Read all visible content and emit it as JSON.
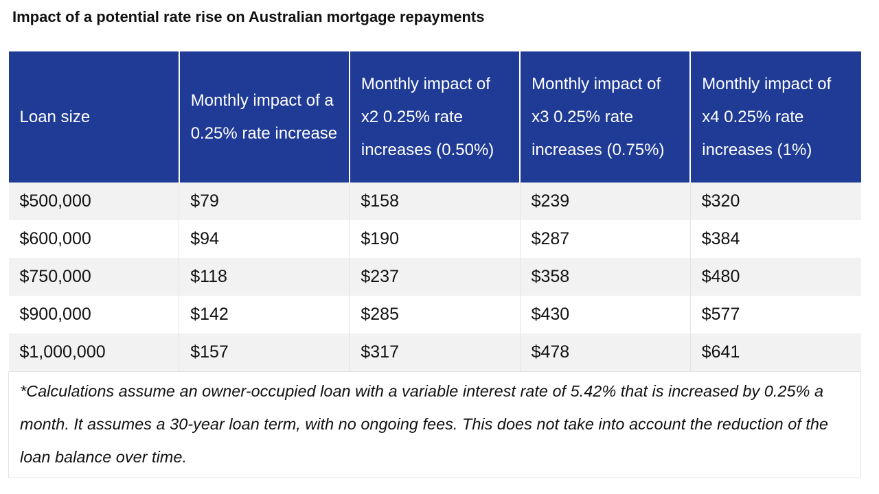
{
  "title": "Impact of a potential rate rise on Australian mortgage repayments",
  "table": {
    "header": [
      "Loan size",
      "Monthly impact of a 0.25% rate increase",
      "Monthly impact of x2 0.25% rate increases (0.50%)",
      "Monthly impact of x3 0.25% rate increases (0.75%)",
      "Monthly impact of x4 0.25% rate increases (1%)"
    ],
    "rows": [
      [
        "$500,000",
        "$79",
        "$158",
        "$239",
        "$320"
      ],
      [
        "$600,000",
        "$94",
        "$190",
        "$287",
        "$384"
      ],
      [
        "$750,000",
        "$118",
        "$237",
        "$358",
        "$480"
      ],
      [
        "$900,000",
        "$142",
        "$285",
        "$430",
        "$577"
      ],
      [
        "$1,000,000",
        "$157",
        "$317",
        "$478",
        "$641"
      ]
    ],
    "footnote": "*Calculations assume an owner-occupied loan with a variable interest rate of 5.42% that is increased by 0.25% a month. It assumes a 30-year loan term, with no ongoing fees. This does not take into account the reduction of the loan balance over time."
  }
}
